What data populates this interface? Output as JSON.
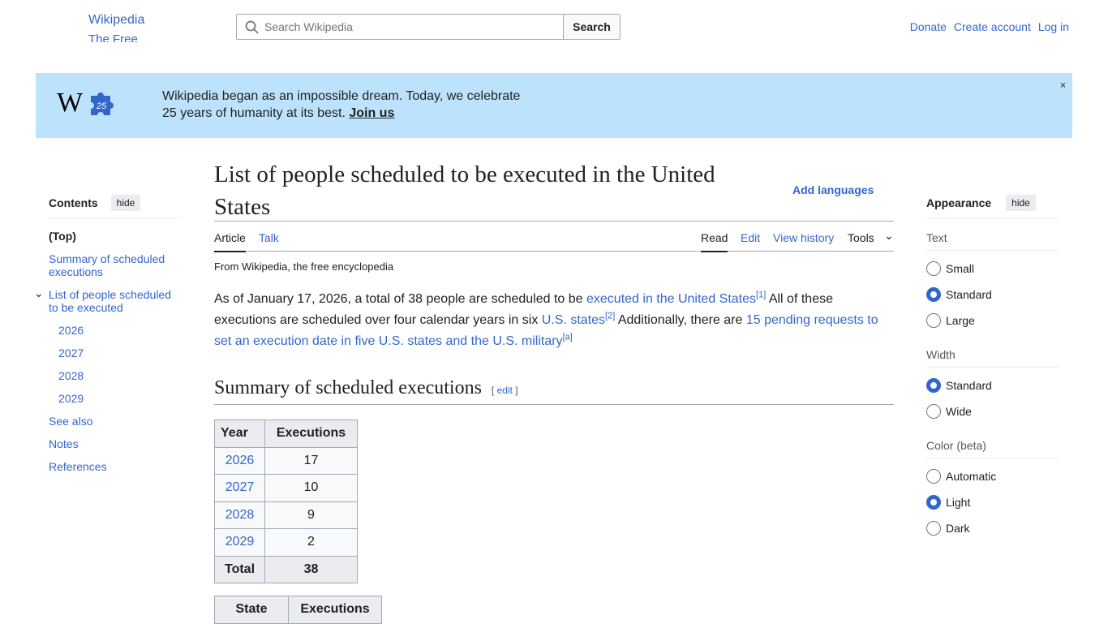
{
  "header": {
    "logo_alt": "Wikipedia",
    "tagline_alt": "The Free",
    "search_placeholder": "Search Wikipedia",
    "search_button": "Search",
    "links": [
      "Donate",
      "Create account",
      "Log in"
    ]
  },
  "banner": {
    "line1": "Wikipedia began as an impossible dream. Today, we celebrate",
    "line2": "25 years of humanity at its best.",
    "cta": "Join us",
    "close": "×",
    "accent": "#bde3fc"
  },
  "toc": {
    "title": "Contents",
    "hide": "hide",
    "items": [
      "(Top)",
      "Summary of scheduled executions",
      "List of people scheduled to be executed",
      "2026",
      "2027",
      "2028",
      "2029",
      "See also",
      "Notes",
      "References"
    ]
  },
  "article": {
    "title": "List of people scheduled to be executed in the United States",
    "add_languages": "Add languages",
    "tabs": {
      "article": "Article",
      "talk": "Talk",
      "read": "Read",
      "edit": "Edit",
      "history": "View history",
      "tools": "Tools"
    },
    "from": "From Wikipedia, the free encyclopedia",
    "p1": "As of January 17, 2026, a total of 38 people are scheduled to be ",
    "l1": "executed in the United States",
    "r1": "[1]",
    "p2": " All of these executions are scheduled over four calendar years in six ",
    "l2": "U.S. states",
    "r2": "[2]",
    "p3": " Additionally, there are ",
    "l3": "15 pending requests to set an execution date in five U.S. states and the U.S. military",
    "r3": "[a]",
    "h2": "Summary of scheduled executions",
    "edit": "edit"
  },
  "year_table": {
    "headers": [
      "Year",
      "Executions"
    ],
    "rows": [
      [
        "2026",
        "17"
      ],
      [
        "2027",
        "10"
      ],
      [
        "2028",
        "9"
      ],
      [
        "2029",
        "2"
      ]
    ],
    "total": [
      "Total",
      "38"
    ]
  },
  "state_table": {
    "headers": [
      "State",
      "Executions"
    ]
  },
  "appearance": {
    "title": "Appearance",
    "hide": "hide",
    "text_label": "Text",
    "text_opts": [
      "Small",
      "Standard",
      "Large"
    ],
    "width_label": "Width",
    "width_opts": [
      "Standard",
      "Wide"
    ],
    "color_label": "Color (beta)",
    "color_opts": [
      "Automatic",
      "Light",
      "Dark"
    ]
  }
}
